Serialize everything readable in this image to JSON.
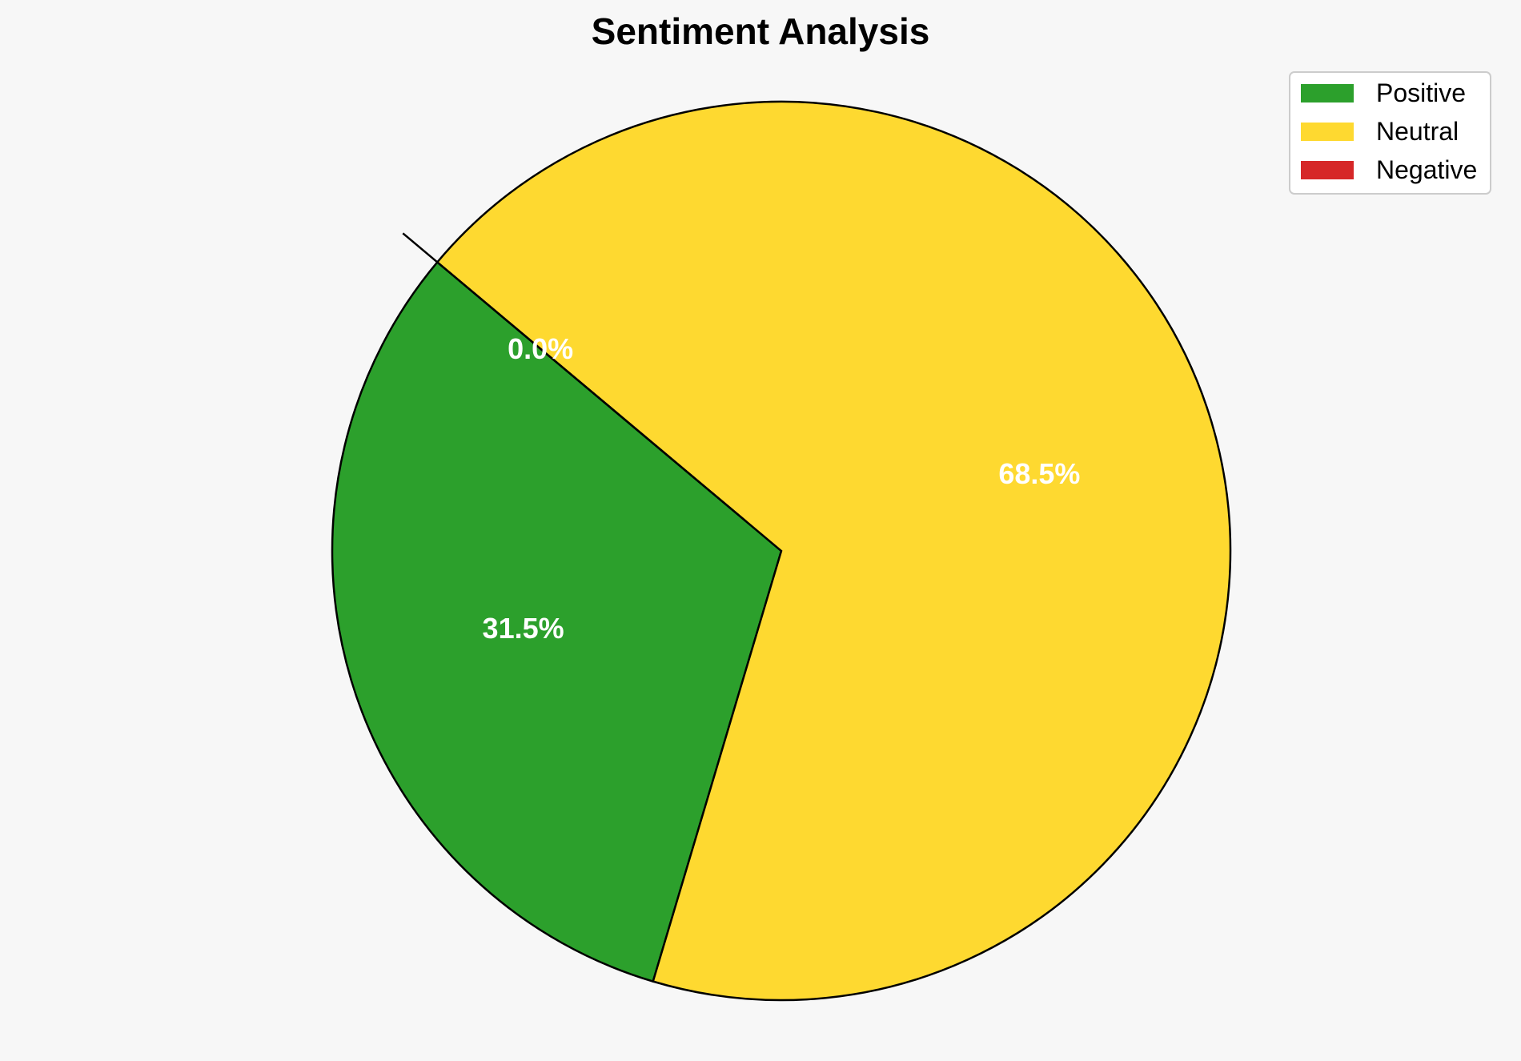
{
  "chart_data": {
    "type": "pie",
    "title": "Sentiment Analysis",
    "categories": [
      "Positive",
      "Neutral",
      "Negative"
    ],
    "values": [
      31.5,
      68.5,
      0.0
    ],
    "labels": [
      "31.5%",
      "68.5%",
      "0.0%"
    ],
    "colors": [
      "#2ca02c",
      "#fed930",
      "#d62728"
    ],
    "exploded": [
      false,
      false,
      true
    ],
    "start_angle_deg": 140,
    "direction": "counterclockwise",
    "legend": {
      "position": "top-right",
      "entries": [
        "Positive",
        "Neutral",
        "Negative"
      ]
    },
    "edgecolor": "#000000"
  }
}
